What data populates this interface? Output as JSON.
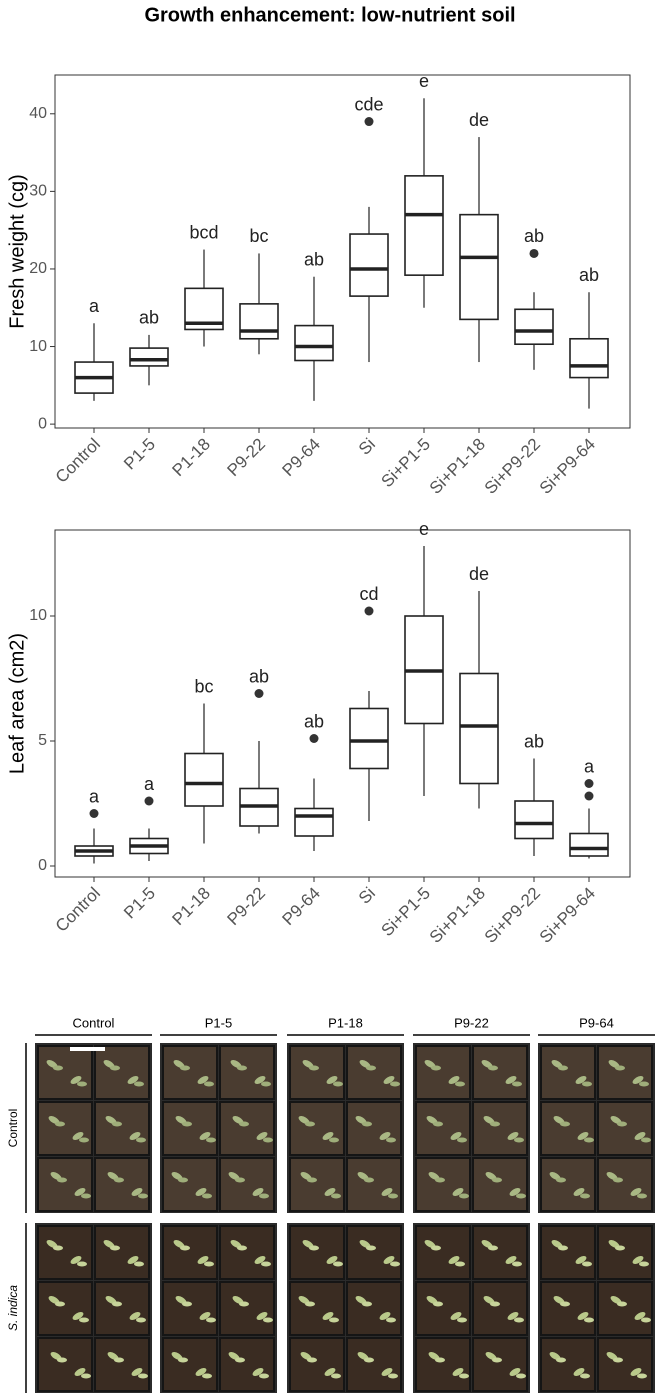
{
  "title": "Growth enhancement: low-nutrient soil",
  "chart_data": [
    {
      "type": "box",
      "ylabel": "Fresh weight (cg)",
      "categories": [
        "Control",
        "P1-5",
        "P1-18",
        "P9-22",
        "P9-64",
        "Si",
        "Si+P1-5",
        "Si+P1-18",
        "Si+P9-22",
        "Si+P9-64"
      ],
      "boxes": [
        {
          "q1": 4,
          "median": 6,
          "q3": 8,
          "whisker_low": 3,
          "whisker_high": 13,
          "outliers": []
        },
        {
          "q1": 7.5,
          "median": 8.3,
          "q3": 9.8,
          "whisker_low": 5,
          "whisker_high": 11.5,
          "outliers": []
        },
        {
          "q1": 12.2,
          "median": 13,
          "q3": 17.5,
          "whisker_low": 10,
          "whisker_high": 22.5,
          "outliers": []
        },
        {
          "q1": 11,
          "median": 12,
          "q3": 15.5,
          "whisker_low": 9,
          "whisker_high": 22,
          "outliers": []
        },
        {
          "q1": 8.2,
          "median": 10,
          "q3": 12.7,
          "whisker_low": 3,
          "whisker_high": 19,
          "outliers": []
        },
        {
          "q1": 16.5,
          "median": 20,
          "q3": 24.5,
          "whisker_low": 8,
          "whisker_high": 28,
          "outliers": [
            39
          ]
        },
        {
          "q1": 19.2,
          "median": 27,
          "q3": 32,
          "whisker_low": 15,
          "whisker_high": 42,
          "outliers": []
        },
        {
          "q1": 13.5,
          "median": 21.5,
          "q3": 27,
          "whisker_low": 8,
          "whisker_high": 37,
          "outliers": []
        },
        {
          "q1": 10.3,
          "median": 12,
          "q3": 14.8,
          "whisker_low": 7,
          "whisker_high": 17,
          "outliers": [
            22
          ]
        },
        {
          "q1": 6,
          "median": 7.5,
          "q3": 11,
          "whisker_low": 2,
          "whisker_high": 17,
          "outliers": []
        }
      ],
      "letters": [
        "a",
        "ab",
        "bcd",
        "bc",
        "ab",
        "cde",
        "e",
        "de",
        "ab",
        "ab"
      ],
      "ylim": [
        -0.5,
        45
      ],
      "yticks": [
        0,
        10,
        20,
        30,
        40
      ]
    },
    {
      "type": "box",
      "ylabel": "Leaf area (cm2)",
      "categories": [
        "Control",
        "P1-5",
        "P1-18",
        "P9-22",
        "P9-64",
        "Si",
        "Si+P1-5",
        "Si+P1-18",
        "Si+P9-22",
        "Si+P9-64"
      ],
      "boxes": [
        {
          "q1": 0.4,
          "median": 0.6,
          "q3": 0.8,
          "whisker_low": 0.1,
          "whisker_high": 1.5,
          "outliers": [
            2.1
          ]
        },
        {
          "q1": 0.5,
          "median": 0.8,
          "q3": 1.1,
          "whisker_low": 0.2,
          "whisker_high": 1.5,
          "outliers": [
            2.6
          ]
        },
        {
          "q1": 2.4,
          "median": 3.3,
          "q3": 4.5,
          "whisker_low": 0.9,
          "whisker_high": 6.5,
          "outliers": []
        },
        {
          "q1": 1.6,
          "median": 2.4,
          "q3": 3.1,
          "whisker_low": 1.3,
          "whisker_high": 5,
          "outliers": [
            6.9
          ]
        },
        {
          "q1": 1.2,
          "median": 2,
          "q3": 2.3,
          "whisker_low": 0.6,
          "whisker_high": 3.5,
          "outliers": [
            5.1
          ]
        },
        {
          "q1": 3.9,
          "median": 5,
          "q3": 6.3,
          "whisker_low": 1.8,
          "whisker_high": 7,
          "outliers": [
            10.2
          ]
        },
        {
          "q1": 5.7,
          "median": 7.8,
          "q3": 10,
          "whisker_low": 2.8,
          "whisker_high": 12.8,
          "outliers": []
        },
        {
          "q1": 3.3,
          "median": 5.6,
          "q3": 7.7,
          "whisker_low": 2.3,
          "whisker_high": 11,
          "outliers": []
        },
        {
          "q1": 1.1,
          "median": 1.7,
          "q3": 2.6,
          "whisker_low": 0.4,
          "whisker_high": 4.3,
          "outliers": []
        },
        {
          "q1": 0.4,
          "median": 0.7,
          "q3": 1.3,
          "whisker_low": 0.3,
          "whisker_high": 2.3,
          "outliers": [
            2.8,
            3.3
          ]
        }
      ],
      "letters": [
        "a",
        "a",
        "bc",
        "ab",
        "ab",
        "cd",
        "e",
        "de",
        "ab",
        "a"
      ],
      "ylim": [
        -0.44,
        13.44
      ],
      "yticks": [
        0,
        5,
        10
      ]
    }
  ],
  "photo_panel": {
    "columns": [
      "Control",
      "P1-5",
      "P1-18",
      "P9-22",
      "P9-64"
    ],
    "rows": [
      "Control",
      "S. indica"
    ]
  }
}
